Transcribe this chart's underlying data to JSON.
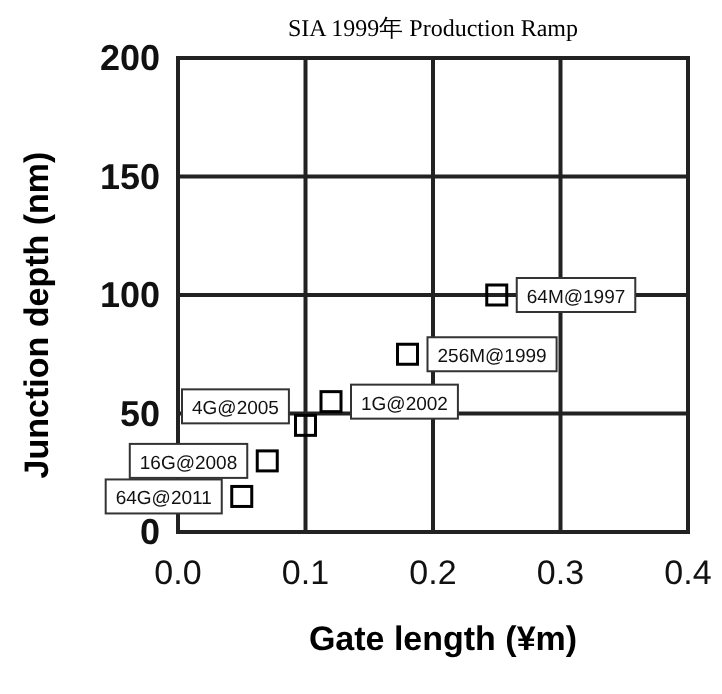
{
  "chart_data": {
    "type": "scatter",
    "title": "SIA 1999年 Production Ramp",
    "xlabel": "Gate length  (¥m)",
    "ylabel": "Junction depth  (nm)",
    "x": [
      0.25,
      0.18,
      0.12,
      0.1,
      0.07,
      0.05
    ],
    "series": [
      {
        "color": "#000000",
        "values": [
          100,
          75,
          55,
          45,
          30,
          15
        ]
      }
    ],
    "marker": "square",
    "annotations": [
      {
        "text": "64M@1997",
        "x": 0.25,
        "y": 100
      },
      {
        "text": "256M@1999",
        "x": 0.18,
        "y": 75
      },
      {
        "text": "1G@2002",
        "x": 0.12,
        "y": 55
      },
      {
        "text": "4G@2005",
        "x": 0.1,
        "y": 45
      },
      {
        "text": "16G@2008",
        "x": 0.07,
        "y": 30
      },
      {
        "text": "64G@2011",
        "x": 0.05,
        "y": 15
      }
    ],
    "xlim": [
      0,
      0.4
    ],
    "ylim": [
      0,
      200
    ],
    "xticks": [
      {
        "value": 0,
        "label": "0.0"
      },
      0.1,
      0.2,
      0.3,
      0.4
    ],
    "yticks": [
      0,
      50,
      100,
      150,
      200
    ],
    "grid": true
  }
}
